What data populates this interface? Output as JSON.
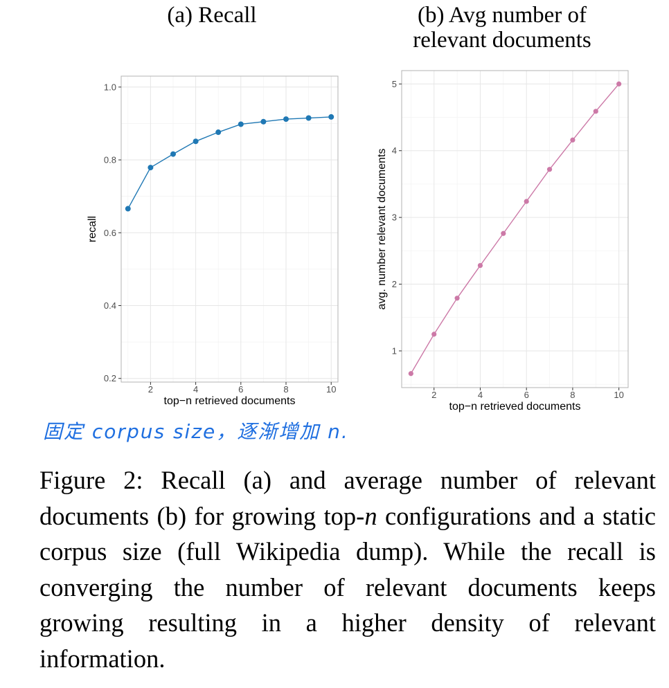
{
  "chart_data": [
    {
      "type": "line",
      "title": "(a) Recall",
      "xlabel": "top−n retrieved documents",
      "ylabel": "recall",
      "xlim": [
        0.7,
        10.3
      ],
      "ylim": [
        0.19,
        1.03
      ],
      "x_ticks": [
        2,
        4,
        6,
        8,
        10
      ],
      "y_ticks": [
        0.2,
        0.4,
        0.6,
        0.8,
        1.0
      ],
      "y_tick_labels": [
        "0.2",
        "0.4",
        "0.6",
        "0.8",
        "1.0"
      ],
      "grid": true,
      "series": [
        {
          "color": "#1f78b4",
          "x": [
            1,
            2,
            3,
            4,
            5,
            6,
            7,
            8,
            9,
            10
          ],
          "y": [
            0.666,
            0.779,
            0.816,
            0.851,
            0.876,
            0.898,
            0.905,
            0.912,
            0.915,
            0.918
          ]
        }
      ]
    },
    {
      "type": "line",
      "title": "(b) Avg number of relevant documents",
      "xlabel": "top−n retrieved documents",
      "ylabel": "avg. number relevant documents",
      "xlim": [
        0.6,
        10.4
      ],
      "ylim": [
        0.45,
        5.2
      ],
      "x_ticks": [
        2,
        4,
        6,
        8,
        10
      ],
      "y_ticks": [
        1,
        2,
        3,
        4,
        5
      ],
      "y_tick_labels": [
        "1",
        "2",
        "3",
        "4",
        "5"
      ],
      "grid": true,
      "series": [
        {
          "color": "#cc79a7",
          "x": [
            1,
            2,
            3,
            4,
            5,
            6,
            7,
            8,
            9,
            10
          ],
          "y": [
            0.66,
            1.25,
            1.79,
            2.28,
            2.76,
            3.24,
            3.72,
            4.16,
            4.59,
            5.0
          ]
        }
      ]
    }
  ],
  "annotation": {
    "handwritten_note": "固定 corpus size，逐渐增加 n."
  },
  "caption": {
    "part1": "Figure 2:  Recall (a) and average number of relevant documents (b) for growing top-",
    "n": "n",
    "part2": " configurations and a static corpus size (full Wikipedia dump). While the recall is converging the number of relevant documents keeps growing resulting in a higher density of relevant information."
  }
}
